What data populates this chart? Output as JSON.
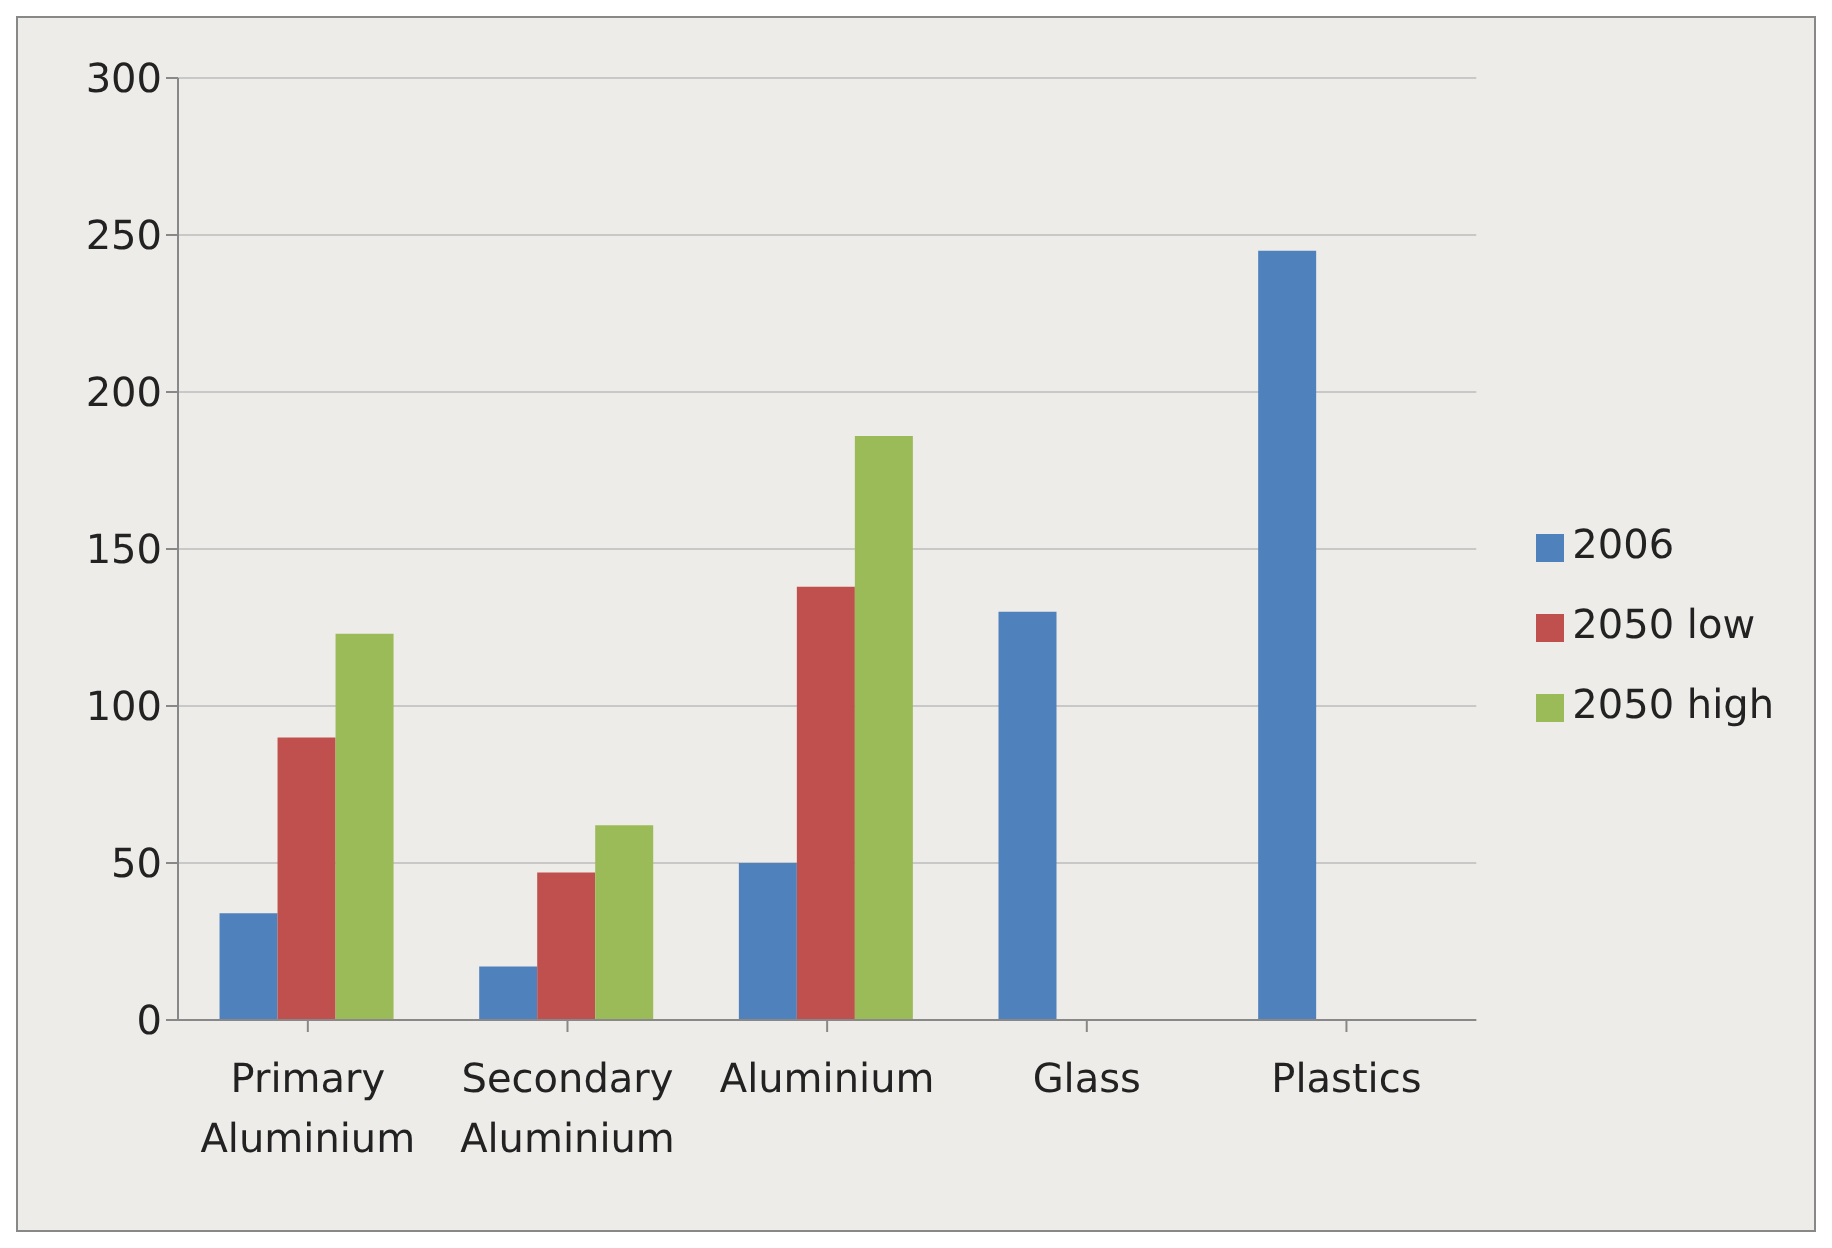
{
  "chart_data": {
    "type": "bar",
    "categories": [
      "Primary Aluminium",
      "Secondary Aluminium",
      "Aluminium",
      "Glass",
      "Plastics"
    ],
    "series": [
      {
        "name": "2006",
        "color": "#4f81bd",
        "values": [
          34,
          17,
          50,
          130,
          245
        ]
      },
      {
        "name": "2050 low",
        "color": "#c0504d",
        "values": [
          90,
          47,
          138,
          null,
          null
        ]
      },
      {
        "name": "2050 high",
        "color": "#9bbb59",
        "values": [
          123,
          62,
          186,
          null,
          null
        ]
      }
    ],
    "ylim": [
      0,
      300
    ],
    "yticks": [
      0,
      50,
      100,
      150,
      200,
      250,
      300
    ],
    "grid": "y",
    "legend": "right"
  }
}
